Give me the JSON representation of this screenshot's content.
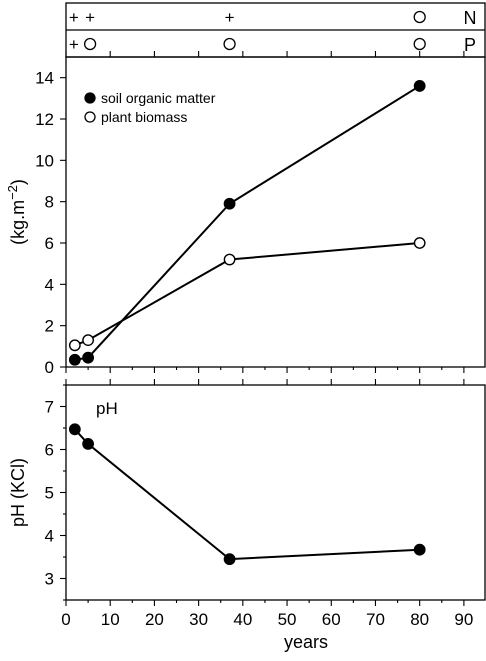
{
  "chart_data": [
    {
      "type": "table",
      "rows": [
        {
          "label": "N",
          "symbols": [
            {
              "x": 2,
              "text": "+"
            },
            {
              "x": 5,
              "text": "+"
            },
            {
              "x": 37,
              "text": "+"
            },
            {
              "x": 80,
              "text": "○"
            }
          ]
        },
        {
          "label": "P",
          "symbols": [
            {
              "x": 2,
              "text": "+"
            },
            {
              "x": 5,
              "text": "○"
            },
            {
              "x": 37,
              "text": "○"
            },
            {
              "x": 80,
              "text": "○"
            }
          ]
        }
      ]
    },
    {
      "type": "line",
      "ylabel": "(kg.m−2)",
      "ylim": [
        0,
        15
      ],
      "yticks": [
        0,
        2,
        4,
        6,
        8,
        10,
        12,
        14
      ],
      "xlim": [
        0,
        95
      ],
      "legend_position": "top-left",
      "series": [
        {
          "name": "soil organic matter",
          "marker": "filled",
          "x": [
            2,
            5,
            37,
            80
          ],
          "y": [
            0.35,
            0.45,
            7.9,
            13.6
          ]
        },
        {
          "name": "plant biomass",
          "marker": "open",
          "x": [
            2,
            5,
            37,
            80
          ],
          "y": [
            1.05,
            1.3,
            5.2,
            6.0
          ]
        }
      ]
    },
    {
      "type": "line",
      "ylabel": "pH (KCl)",
      "xlabel": "years",
      "annotation": "pH",
      "ylim": [
        2.5,
        7.5
      ],
      "yticks": [
        3,
        4,
        5,
        6,
        7
      ],
      "xlim": [
        0,
        95
      ],
      "xticks": [
        0,
        10,
        20,
        30,
        40,
        50,
        60,
        70,
        80,
        90
      ],
      "series": [
        {
          "marker": "filled",
          "x": [
            2,
            5,
            37,
            80
          ],
          "y": [
            6.47,
            6.13,
            3.45,
            3.67
          ]
        }
      ]
    }
  ]
}
